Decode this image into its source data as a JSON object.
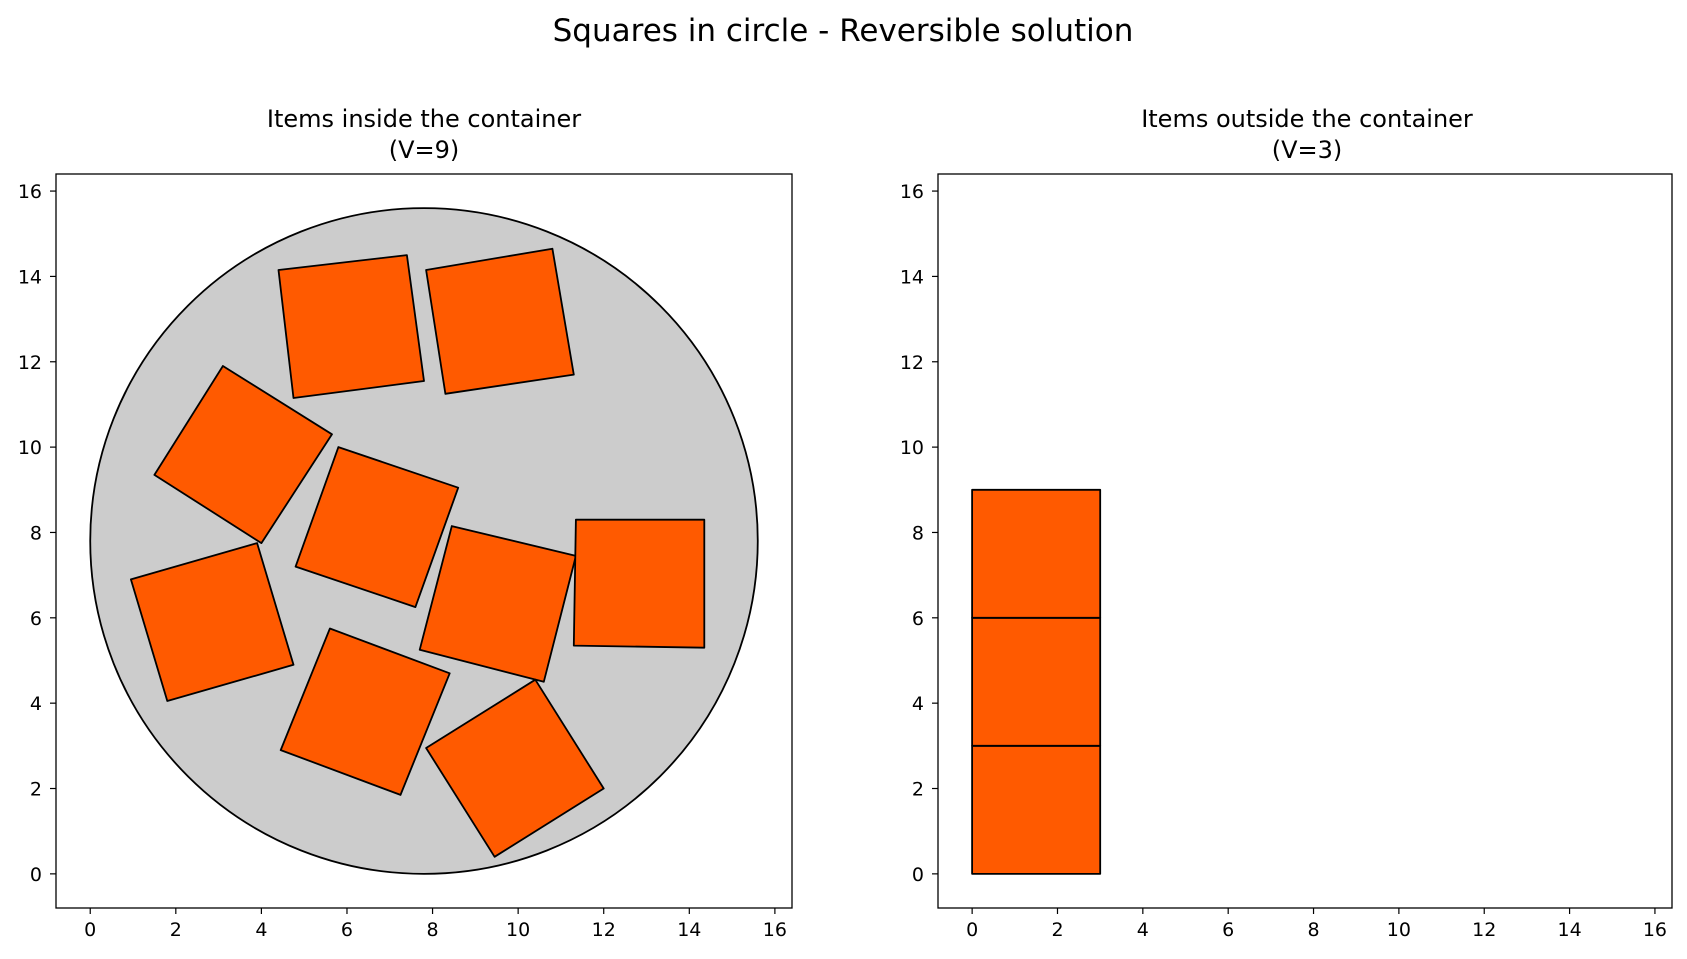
{
  "figure": {
    "title": "Squares in circle - Reversible solution"
  },
  "colors": {
    "item_fill": "#ff5a00",
    "container_fill": "#cccccc",
    "edge": "#000000"
  },
  "chart_data": [
    {
      "type": "polygon",
      "title_line1": "Items inside the container",
      "title_line2": "(V=9)",
      "xlim": [
        -0.8,
        16.4
      ],
      "ylim": [
        -0.8,
        16.4
      ],
      "xticks": [
        0,
        2,
        4,
        6,
        8,
        10,
        12,
        14,
        16
      ],
      "yticks": [
        0,
        2,
        4,
        6,
        8,
        10,
        12,
        14,
        16
      ],
      "container": {
        "shape": "circle",
        "center": [
          7.8,
          7.8
        ],
        "radius": 7.8
      },
      "items": [
        {
          "name": "square-1",
          "points": [
            [
              4.4,
              14.15
            ],
            [
              7.4,
              14.5
            ],
            [
              7.8,
              11.55
            ],
            [
              4.75,
              11.15
            ]
          ]
        },
        {
          "name": "square-2",
          "points": [
            [
              7.85,
              14.15
            ],
            [
              10.8,
              14.65
            ],
            [
              11.3,
              11.7
            ],
            [
              8.3,
              11.25
            ]
          ]
        },
        {
          "name": "square-3",
          "points": [
            [
              3.1,
              11.9
            ],
            [
              5.65,
              10.3
            ],
            [
              4.0,
              7.75
            ],
            [
              1.5,
              9.35
            ]
          ]
        },
        {
          "name": "square-4",
          "points": [
            [
              5.8,
              10.0
            ],
            [
              8.6,
              9.05
            ],
            [
              7.6,
              6.25
            ],
            [
              4.8,
              7.2
            ]
          ]
        },
        {
          "name": "square-5",
          "points": [
            [
              0.95,
              6.9
            ],
            [
              3.9,
              7.75
            ],
            [
              4.75,
              4.9
            ],
            [
              1.8,
              4.05
            ]
          ]
        },
        {
          "name": "square-6",
          "points": [
            [
              8.45,
              8.15
            ],
            [
              11.35,
              7.45
            ],
            [
              10.6,
              4.5
            ],
            [
              7.7,
              5.25
            ]
          ]
        },
        {
          "name": "square-7",
          "points": [
            [
              11.35,
              8.3
            ],
            [
              14.35,
              8.3
            ],
            [
              14.35,
              5.3
            ],
            [
              11.3,
              5.35
            ]
          ]
        },
        {
          "name": "square-8",
          "points": [
            [
              5.6,
              5.75
            ],
            [
              8.4,
              4.7
            ],
            [
              7.25,
              1.85
            ],
            [
              4.45,
              2.9
            ]
          ]
        },
        {
          "name": "square-9",
          "points": [
            [
              7.85,
              2.95
            ],
            [
              10.4,
              4.55
            ],
            [
              12.0,
              2.0
            ],
            [
              9.45,
              0.4
            ]
          ]
        }
      ]
    },
    {
      "type": "polygon",
      "title_line1": "Items outside the container",
      "title_line2": "(V=3)",
      "xlim": [
        -0.8,
        16.4
      ],
      "ylim": [
        -0.8,
        16.4
      ],
      "xticks": [
        0,
        2,
        4,
        6,
        8,
        10,
        12,
        14,
        16
      ],
      "yticks": [
        0,
        2,
        4,
        6,
        8,
        10,
        12,
        14,
        16
      ],
      "items": [
        {
          "name": "square-out-1",
          "points": [
            [
              0,
              0
            ],
            [
              3,
              0
            ],
            [
              3,
              3
            ],
            [
              0,
              3
            ]
          ]
        },
        {
          "name": "square-out-2",
          "points": [
            [
              0,
              3
            ],
            [
              3,
              3
            ],
            [
              3,
              6
            ],
            [
              0,
              6
            ]
          ]
        },
        {
          "name": "square-out-3",
          "points": [
            [
              0,
              6
            ],
            [
              3,
              6
            ],
            [
              3,
              9
            ],
            [
              0,
              9
            ]
          ]
        }
      ]
    }
  ]
}
